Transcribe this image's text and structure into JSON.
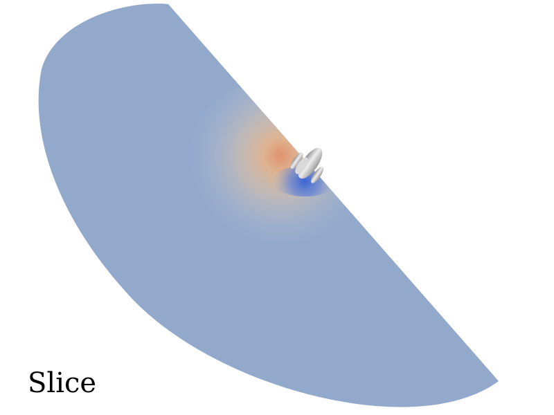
{
  "caption": "Slice",
  "colors": {
    "background": "#ffffff",
    "slice_base": "#93a9cc",
    "field_high": "#e0926c",
    "field_warm": "#d8c2ae",
    "field_low": "#3a64d6",
    "model_light": "#eeeeee",
    "model_dark": "#8e8e8e",
    "caption_text": "#000000"
  },
  "objects": {
    "slice_plane": "curved-slice-plane",
    "model": "space-shuttle-model"
  }
}
